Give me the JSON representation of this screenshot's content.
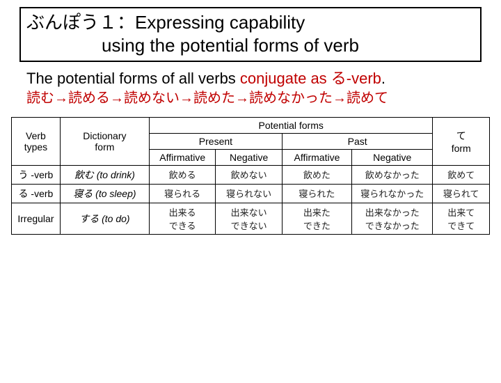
{
  "title": {
    "line1": "ぶんぽう１：Expressing capability",
    "line2": "using the potential forms of verb"
  },
  "explain": {
    "prefix": "The potential forms of all verbs ",
    "highlighted": "conjugate as る-verb",
    "suffix": "."
  },
  "conjugation_chain": "読む→読める→読めない→読めた→読めなかった→読めて",
  "table": {
    "headers": {
      "verb_types": "Verb\ntypes",
      "dictionary_form": "Dictionary\nform",
      "potential_forms": "Potential forms",
      "present": "Present",
      "past": "Past",
      "affirmative": "Affirmative",
      "negative": "Negative",
      "te_form": "て\nform"
    },
    "col_widths": [
      "60px",
      "110px",
      "82px",
      "82px",
      "86px",
      "100px",
      "70px"
    ],
    "rows": [
      {
        "type": "う -verb",
        "dict": "飲む (to drink)",
        "present_aff": "飲める",
        "present_neg": "飲めない",
        "past_aff": "飲めた",
        "past_neg": "飲めなかった",
        "te": "飲めて"
      },
      {
        "type": "る -verb",
        "dict": "寝る (to sleep)",
        "present_aff": "寝られる",
        "present_neg": "寝られない",
        "past_aff": "寝られた",
        "past_neg": "寝られなかった",
        "te": "寝られて"
      },
      {
        "type": "Irregular",
        "dict": "する (to do)",
        "present_aff": "出来る\nできる",
        "present_neg": "出来ない\nできない",
        "past_aff": "出来た\nできた",
        "past_neg": "出来なかった\nできなかった",
        "te": "出来て\nできて"
      }
    ]
  },
  "colors": {
    "highlight": "#c00000",
    "border": "#000000",
    "text": "#000000",
    "background": "#ffffff"
  }
}
